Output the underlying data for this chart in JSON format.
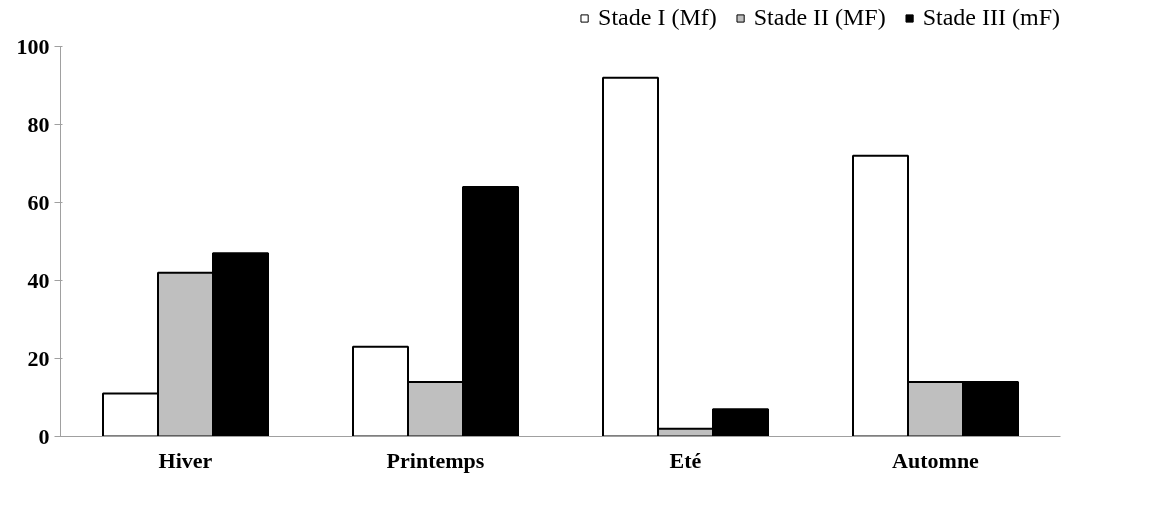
{
  "chart_data": {
    "type": "bar",
    "categories": [
      "Hiver",
      "Printemps",
      "Eté",
      "Automne"
    ],
    "series": [
      {
        "name": "Stade I (Mf)",
        "color": "#ffffff",
        "values": [
          11,
          23,
          92,
          72
        ]
      },
      {
        "name": "Stade II (MF)",
        "color": "#bfbfbf",
        "values": [
          42,
          14,
          2,
          14
        ]
      },
      {
        "name": "Stade III (mF)",
        "color": "#000000",
        "values": [
          47,
          64,
          7,
          14
        ]
      }
    ],
    "ylim": [
      0,
      100
    ],
    "yticks": [
      0,
      20,
      40,
      60,
      80,
      100
    ],
    "grid": false,
    "legend": "top right"
  }
}
